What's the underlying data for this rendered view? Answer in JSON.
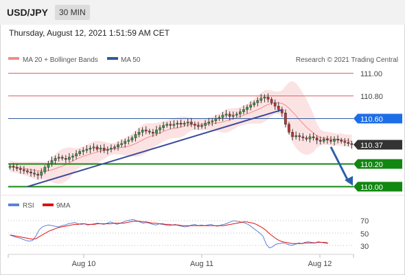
{
  "header": {
    "pair": "USD/JPY",
    "timeframe": "30 MIN"
  },
  "datetime": "Thursday, August 12, 2021 1:51:59 AM CET",
  "legend": {
    "bollinger": "MA 20 + Bollinger Bands",
    "ma50": "MA 50",
    "copyright": "Research © 2021 Trading Central"
  },
  "colors": {
    "bollinger": "#f48a8a",
    "ma50": "#2c5aa0",
    "resistance": "#e06060",
    "support": "#128712",
    "price_box": "#333333",
    "ma50_box": "#1d6ee6",
    "rsi": "#5b82d6",
    "rsi_ma": "#e01010",
    "trendline": "#3a4a9a",
    "arrow": "#2a5fa8"
  },
  "chart_data": {
    "type": "candlestick",
    "ylim": [
      109.94,
      111.08
    ],
    "x_tick_labels": [
      "Aug 10",
      "Aug 11",
      "Aug 12"
    ],
    "resistance_levels": [
      {
        "value": 111.0,
        "label": "111.00"
      },
      {
        "value": 110.8,
        "label": "110.80"
      }
    ],
    "ma50": {
      "value": 110.6,
      "label": "110.60"
    },
    "current_price": {
      "value": 110.37,
      "label": "110.37"
    },
    "support_levels": [
      {
        "value": 110.2,
        "label": "110.20"
      },
      {
        "value": 110.0,
        "label": "110.00"
      }
    ],
    "closes": [
      110.18,
      110.17,
      110.16,
      110.15,
      110.14,
      110.13,
      110.12,
      110.11,
      110.1,
      110.13,
      110.17,
      110.2,
      110.23,
      110.25,
      110.26,
      110.25,
      110.24,
      110.26,
      110.27,
      110.29,
      110.31,
      110.32,
      110.33,
      110.34,
      110.35,
      110.33,
      110.34,
      110.32,
      110.33,
      110.34,
      110.35,
      110.37,
      110.38,
      110.4,
      110.41,
      110.43,
      110.46,
      110.48,
      110.5,
      110.49,
      110.48,
      110.47,
      110.5,
      110.52,
      110.54,
      110.55,
      110.54,
      110.55,
      110.56,
      110.55,
      110.56,
      110.57,
      110.55,
      110.54,
      110.53,
      110.54,
      110.56,
      110.57,
      110.58,
      110.6,
      110.61,
      110.63,
      110.64,
      110.62,
      110.63,
      110.64,
      110.66,
      110.68,
      110.7,
      110.72,
      110.74,
      110.76,
      110.78,
      110.79,
      110.77,
      110.74,
      110.71,
      110.68,
      110.65,
      110.55,
      110.48,
      110.44,
      110.45,
      110.44,
      110.43,
      110.42,
      110.44,
      110.43,
      110.41,
      110.4,
      110.42,
      110.41,
      110.4,
      110.42,
      110.41,
      110.4,
      110.39,
      110.38,
      110.37
    ],
    "rsi": {
      "legend": [
        "RSI",
        "9MA"
      ],
      "ylim": [
        20,
        80
      ],
      "tick_labels": [
        "70",
        "50",
        "30"
      ],
      "values": [
        47,
        45,
        43,
        42,
        40,
        38,
        37,
        38,
        45,
        55,
        60,
        62,
        63,
        62,
        61,
        60,
        62,
        63,
        65,
        66,
        67,
        65,
        64,
        65,
        63,
        64,
        65,
        66,
        65,
        64,
        66,
        68,
        66,
        64,
        66,
        68,
        70,
        71,
        72,
        70,
        68,
        66,
        67,
        66,
        64,
        63,
        65,
        64,
        63,
        62,
        63,
        64,
        62,
        61,
        60,
        61,
        63,
        64,
        62,
        63,
        62,
        63,
        64,
        62,
        61,
        63,
        64,
        66,
        68,
        70,
        69,
        68,
        67,
        65,
        62,
        58,
        54,
        50,
        45,
        32,
        26,
        28,
        32,
        33,
        34,
        33,
        31,
        30,
        32,
        34,
        33,
        35,
        36,
        35,
        34,
        36,
        35,
        34,
        33
      ],
      "ma": [
        47,
        46,
        45,
        44,
        43,
        42,
        41,
        40,
        41,
        44,
        47,
        50,
        53,
        55,
        57,
        59,
        60,
        61,
        62,
        63,
        64,
        64,
        65,
        65,
        64,
        64,
        64,
        65,
        65,
        65,
        65,
        65,
        66,
        66,
        66,
        66,
        67,
        68,
        69,
        69,
        69,
        68,
        68,
        67,
        66,
        66,
        65,
        65,
        64,
        64,
        63,
        63,
        63,
        62,
        62,
        62,
        62,
        62,
        62,
        62,
        62,
        62,
        62,
        62,
        62,
        62,
        62,
        63,
        64,
        65,
        66,
        67,
        68,
        68,
        67,
        66,
        64,
        61,
        58,
        54,
        49,
        45,
        41,
        38,
        36,
        35,
        34,
        33,
        33,
        33,
        33,
        34,
        34,
        34,
        34,
        35,
        35,
        35,
        34
      ]
    }
  }
}
